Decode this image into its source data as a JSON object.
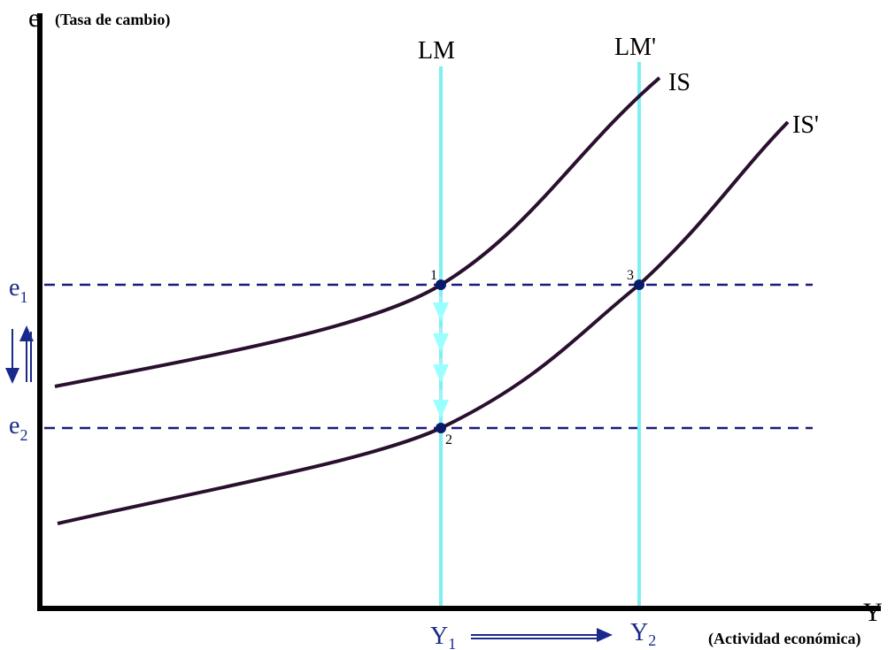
{
  "axes": {
    "y_symbol": "e",
    "y_label": "(Tasa de cambio)",
    "x_symbol": "Y",
    "x_label": "(Actividad económica)"
  },
  "curves": {
    "lm": "LM",
    "lm_prime": "LM'",
    "is": "IS",
    "is_prime": "IS'"
  },
  "levels": {
    "e1": {
      "base": "e",
      "sub": "1"
    },
    "e2": {
      "base": "e",
      "sub": "2"
    },
    "y1": {
      "base": "Y",
      "sub": "1"
    },
    "y2": {
      "base": "Y",
      "sub": "2"
    }
  },
  "points": [
    "1",
    "2",
    "3"
  ]
}
